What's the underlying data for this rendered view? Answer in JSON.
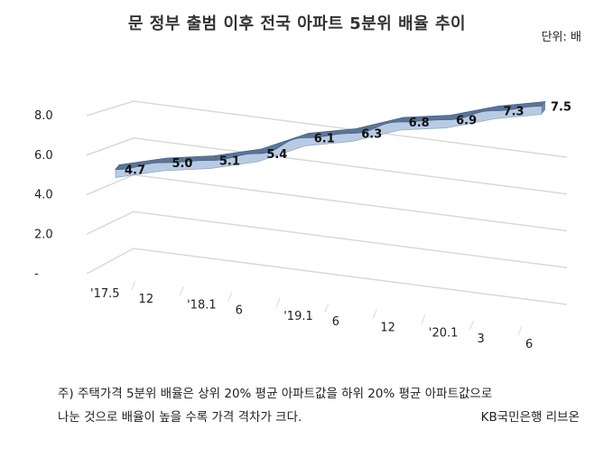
{
  "title": "문 정부 출범 이후 전국 아파트 5분위 배율 추이",
  "unit": "단위: 배",
  "note_line1": "주) 주택가격 5분위 배율은 상위 20% 평균 아파트값을 하위 20% 평균 아파트값으로",
  "note_line2": "나눈 것으로 배율이 높을 수록 가격 격차가 크다.",
  "source": "KB국민은행 리브온",
  "colors": {
    "ribbon_top": "#5a7597",
    "ribbon_front": "#b9cbe3",
    "grid": "#d9d9d9"
  },
  "chart_data": {
    "type": "line",
    "style": "3d-ribbon",
    "title": "문 정부 출범 이후 전국 아파트 5분위 배율 추이",
    "ylim": [
      0,
      8
    ],
    "y_ticks": [
      0,
      2,
      4,
      6,
      8
    ],
    "y_tick_labels": [
      "-",
      "2.0",
      "4.0",
      "6.0",
      "8.0"
    ],
    "x_tick_labels": [
      "'17.5",
      "12",
      "'18.1",
      "6",
      "'19.1",
      "6",
      "12",
      "'20.1",
      "3",
      "6"
    ],
    "values": [
      4.7,
      5.0,
      5.1,
      5.4,
      6.1,
      6.3,
      6.8,
      6.9,
      7.3,
      7.5
    ],
    "data_labels": [
      "4.7",
      "5.0",
      "5.1",
      "5.4",
      "6.1",
      "6.3",
      "6.8",
      "6.9",
      "7.3",
      "7.5"
    ],
    "grid": true,
    "legend": "none"
  }
}
